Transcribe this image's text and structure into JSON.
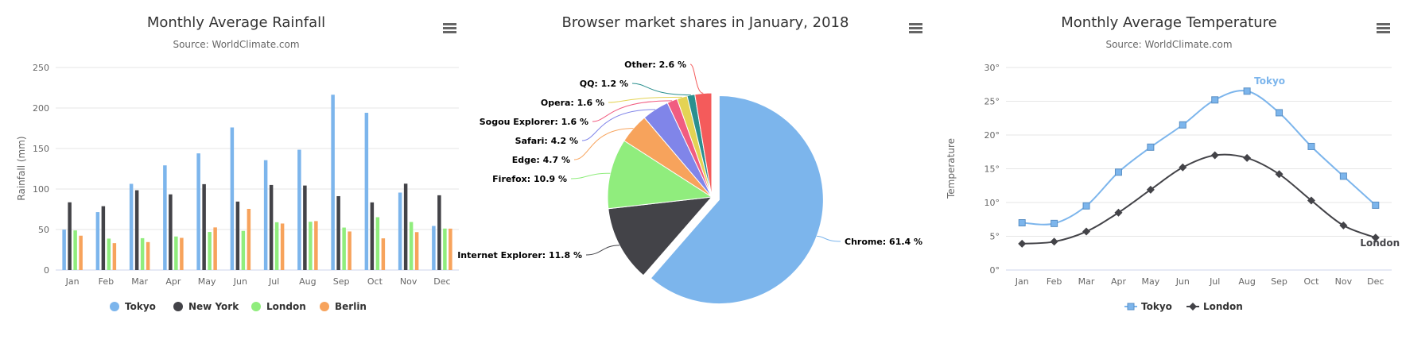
{
  "chart_data": [
    {
      "type": "bar",
      "title": "Monthly Average Rainfall",
      "subtitle": "Source: WorldClimate.com",
      "xlabel": "",
      "ylabel": "Rainfall (mm)",
      "ylim": [
        0,
        250
      ],
      "yticks": [
        "0",
        "50",
        "100",
        "150",
        "200",
        "250"
      ],
      "categories": [
        "Jan",
        "Feb",
        "Mar",
        "Apr",
        "May",
        "Jun",
        "Jul",
        "Aug",
        "Sep",
        "Oct",
        "Nov",
        "Dec"
      ],
      "grid": true,
      "legend_position": "bottom",
      "series": [
        {
          "name": "Tokyo",
          "color": "#7cb5ec",
          "values": [
            49.9,
            71.5,
            106.4,
            129.2,
            144.0,
            176.0,
            135.6,
            148.5,
            216.4,
            194.1,
            95.6,
            54.4
          ]
        },
        {
          "name": "New York",
          "color": "#434348",
          "values": [
            83.6,
            78.8,
            98.5,
            93.4,
            106.0,
            84.5,
            105.0,
            104.3,
            91.2,
            83.5,
            106.6,
            92.3
          ]
        },
        {
          "name": "London",
          "color": "#90ed7d",
          "values": [
            48.9,
            38.8,
            39.3,
            41.4,
            47.0,
            48.3,
            59.0,
            59.6,
            52.4,
            65.2,
            59.3,
            51.2
          ]
        },
        {
          "name": "Berlin",
          "color": "#f7a35c",
          "values": [
            42.4,
            33.2,
            34.5,
            39.7,
            52.6,
            75.5,
            57.4,
            60.4,
            47.6,
            39.1,
            46.8,
            51.1
          ]
        }
      ]
    },
    {
      "type": "pie",
      "title": "Browser market shares in January, 2018",
      "slices": [
        {
          "name": "Chrome",
          "value": 61.4,
          "label": "Chrome: 61.4 %",
          "color": "#7cb5ec",
          "exploded": true
        },
        {
          "name": "Internet Explorer",
          "value": 11.8,
          "label": "Internet Explorer: 11.8 %",
          "color": "#434348"
        },
        {
          "name": "Firefox",
          "value": 10.9,
          "label": "Firefox: 10.9 %",
          "color": "#90ed7d"
        },
        {
          "name": "Edge",
          "value": 4.7,
          "label": "Edge: 4.7 %",
          "color": "#f7a35c"
        },
        {
          "name": "Safari",
          "value": 4.2,
          "label": "Safari: 4.2 %",
          "color": "#8085e9"
        },
        {
          "name": "Sogou Explorer",
          "value": 1.6,
          "label": "Sogou Explorer: 1.6 %",
          "color": "#f15c80"
        },
        {
          "name": "Opera",
          "value": 1.6,
          "label": "Opera: 1.6 %",
          "color": "#e4d354"
        },
        {
          "name": "QQ",
          "value": 1.2,
          "label": "QQ: 1.2 %",
          "color": "#2b908f"
        },
        {
          "name": "Other",
          "value": 2.6,
          "label": "Other: 2.6 %",
          "color": "#f45b5b"
        }
      ]
    },
    {
      "type": "line",
      "title": "Monthly Average Temperature",
      "subtitle": "Source: WorldClimate.com",
      "xlabel": "",
      "ylabel": "Temperature",
      "ylim": [
        0,
        30
      ],
      "yticks": [
        "0°",
        "5°",
        "10°",
        "15°",
        "20°",
        "25°",
        "30°"
      ],
      "categories": [
        "Jan",
        "Feb",
        "Mar",
        "Apr",
        "May",
        "Jun",
        "Jul",
        "Aug",
        "Sep",
        "Oct",
        "Nov",
        "Dec"
      ],
      "grid": true,
      "legend_position": "bottom",
      "series": [
        {
          "name": "Tokyo",
          "color": "#7cb5ec",
          "marker": "square",
          "values": [
            7.0,
            6.9,
            9.5,
            14.5,
            18.2,
            21.5,
            25.2,
            26.5,
            23.3,
            18.3,
            13.9,
            9.6
          ]
        },
        {
          "name": "London",
          "color": "#434348",
          "marker": "diamond",
          "values": [
            3.9,
            4.2,
            5.7,
            8.5,
            11.9,
            15.2,
            17.0,
            16.6,
            14.2,
            10.3,
            6.6,
            4.8
          ]
        }
      ],
      "annotations": [
        "Tokyo",
        "London"
      ]
    }
  ],
  "colors": {
    "axis_text": "#666666",
    "grid": "#e6e6e6",
    "title": "#333333",
    "menu": "#666666"
  },
  "icons": {
    "menu": "hamburger-menu-icon"
  }
}
